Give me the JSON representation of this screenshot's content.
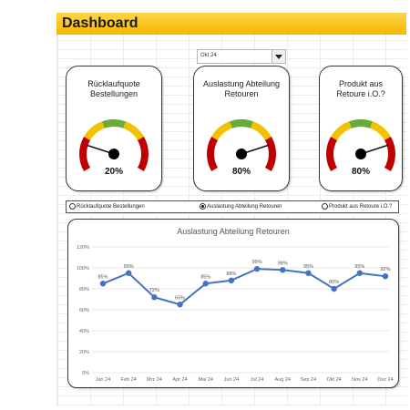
{
  "header": {
    "title": "Dashboard"
  },
  "period_select": {
    "value": "Okt 24"
  },
  "colors": {
    "banner": "#f5b800",
    "red": "#c00000",
    "yellow": "#f2c200",
    "green": "#6aaa3a",
    "line": "#4472c4"
  },
  "cards": [
    {
      "title": "Rücklaufquote Bestellungen",
      "value_label": "20%",
      "value": 0.2
    },
    {
      "title": "Auslastung Abteilung Retouren",
      "value_label": "80%",
      "value": 0.8
    },
    {
      "title": "Produkt aus Retoure i.O.?",
      "value_label": "80%",
      "value": 0.8
    }
  ],
  "radio_options": [
    {
      "label": "Rücklaufquote Bestellungen",
      "selected": false
    },
    {
      "label": "Auslastung Abteilung Retouren",
      "selected": true
    },
    {
      "label": "Produkt aus Retoure i.O.?",
      "selected": false
    }
  ],
  "chart_data": {
    "type": "line",
    "title": "Auslastung Abteilung Retouren",
    "categories": [
      "Jan 24",
      "Feb 24",
      "Mrz 24",
      "Apr 24",
      "Mai 24",
      "Jun 24",
      "Jul 24",
      "Aug 24",
      "Sep 24",
      "Okt 24",
      "Nov 24",
      "Dez 24"
    ],
    "values": [
      85,
      95,
      72,
      65,
      85,
      88,
      99,
      98,
      95,
      80,
      95,
      92
    ],
    "data_labels": [
      "85%",
      "95%",
      "72%",
      "65%",
      "85%",
      "88%",
      "99%",
      "98%",
      "95%",
      "80%",
      "95%",
      "92%"
    ],
    "ylim": [
      0,
      120
    ],
    "yticks": [
      "0%",
      "20%",
      "40%",
      "60%",
      "80%",
      "100%",
      "120%"
    ],
    "grid": true
  }
}
